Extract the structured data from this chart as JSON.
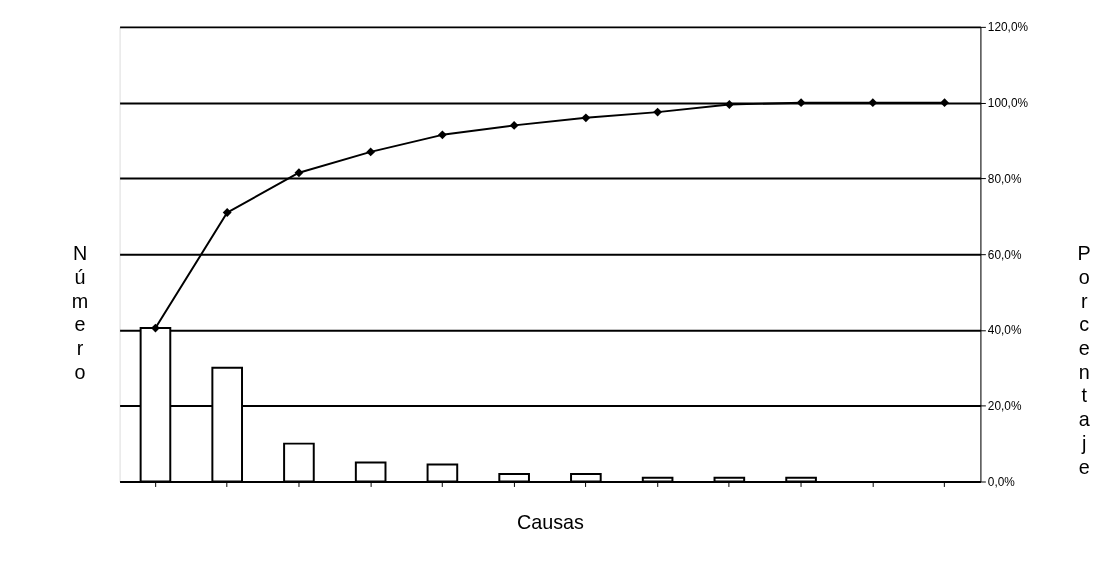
{
  "chart_data": {
    "type": "bar",
    "xlabel": "Causas",
    "ylabel": "Número",
    "y2label": "Porcentaje",
    "categories": [
      null,
      null,
      null,
      null,
      null,
      null,
      null,
      null,
      null,
      null,
      null,
      null
    ],
    "series": [
      {
        "axis": "y2",
        "color": "#ffffff",
        "values": [
          40.5,
          30,
          10,
          5,
          4.5,
          2,
          2,
          1,
          1,
          1,
          0,
          0
        ]
      },
      {
        "type": "line",
        "axis": "y2",
        "color": "#000000",
        "marker": "diamond",
        "values": [
          40.5,
          71,
          81.5,
          87,
          91.5,
          94,
          96,
          97.5,
          99.5,
          100,
          100,
          100
        ]
      }
    ],
    "y2lim": [
      0,
      120
    ],
    "y2ticks": [
      {
        "value": 0,
        "label": "0,0%"
      },
      {
        "value": 20,
        "label": "20,0%"
      },
      {
        "value": 40,
        "label": "40,0%"
      },
      {
        "value": 60,
        "label": "60,0%"
      },
      {
        "value": 80,
        "label": "80,0%"
      },
      {
        "value": 100,
        "label": "100,0%"
      },
      {
        "value": 120,
        "label": "120,0%"
      }
    ],
    "grid": "y"
  }
}
